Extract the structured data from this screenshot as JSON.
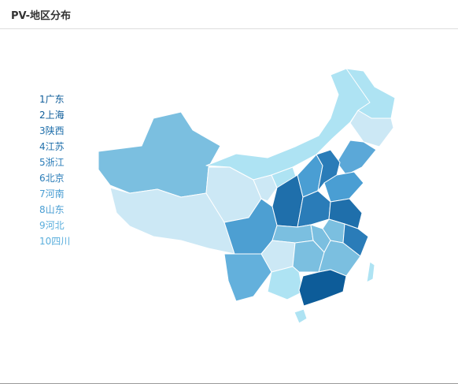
{
  "header": {
    "title": "PV-地区分布"
  },
  "ranking": [
    {
      "rank": 1,
      "name": "广东",
      "color": "#0d5c99"
    },
    {
      "rank": 2,
      "name": "上海",
      "color": "#0d5c99"
    },
    {
      "rank": 3,
      "name": "陕西",
      "color": "#1f6fab"
    },
    {
      "rank": 4,
      "name": "江苏",
      "color": "#1f6fab"
    },
    {
      "rank": 5,
      "name": "浙江",
      "color": "#2a7cb8"
    },
    {
      "rank": 6,
      "name": "北京",
      "color": "#2a7cb8"
    },
    {
      "rank": 7,
      "name": "河南",
      "color": "#4a9ed3"
    },
    {
      "rank": 8,
      "name": "山东",
      "color": "#4a9ed3"
    },
    {
      "rank": 9,
      "name": "河北",
      "color": "#5aaedc"
    },
    {
      "rank": 10,
      "name": "四川",
      "color": "#5aaedc"
    }
  ]
}
